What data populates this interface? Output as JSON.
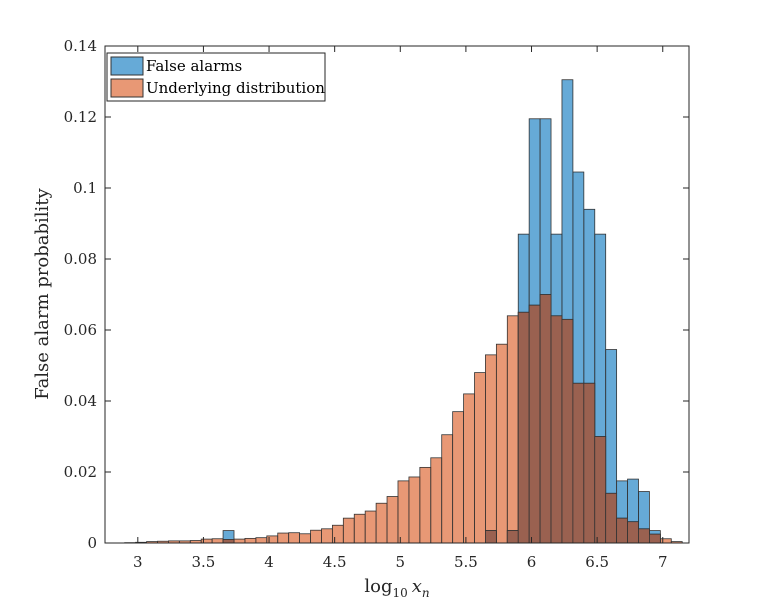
{
  "chart_data": {
    "type": "bar",
    "xlabel": "log",
    "xlabel_sub": "10",
    "xlabel_var": "x",
    "xlabel_var_sub": "n",
    "ylabel": "False alarm probability",
    "xlim": [
      2.75,
      7.2
    ],
    "ylim": [
      0,
      0.14
    ],
    "xticks": [
      3,
      3.5,
      4,
      4.5,
      5,
      5.5,
      6,
      6.5,
      7
    ],
    "xtick_labels": [
      "3",
      "3.5",
      "4",
      "4.5",
      "5",
      "5.5",
      "6",
      "6.5",
      "7"
    ],
    "yticks": [
      0,
      0.02,
      0.04,
      0.06,
      0.08,
      0.1,
      0.12,
      0.14
    ],
    "ytick_labels": [
      "0",
      "0.02",
      "0.04",
      "0.06",
      "0.08",
      "0.1",
      "0.12",
      "0.14"
    ],
    "bin_start": 2.9,
    "bin_width": 0.0833,
    "grid": false,
    "legend_position": "top-left",
    "colors": {
      "false_alarms": "#0072BD",
      "underlying": "#D95319",
      "overlap": "#9a6150",
      "edge": "#333333",
      "axis": "#262626"
    },
    "series": [
      {
        "name": "False alarms",
        "values": [
          0,
          0,
          0,
          0,
          0,
          0,
          0,
          0,
          0,
          0.0035,
          0,
          0,
          0,
          0,
          0,
          0,
          0,
          0,
          0,
          0,
          0,
          0,
          0,
          0,
          0,
          0,
          0,
          0,
          0,
          0,
          0,
          0,
          0,
          0.0035,
          0,
          0.0035,
          0.087,
          0.1195,
          0.1195,
          0.087,
          0.1305,
          0.1045,
          0.094,
          0.087,
          0.0545,
          0.0175,
          0.018,
          0.0145,
          0.0035,
          0,
          0
        ]
      },
      {
        "name": "Underlying distribution",
        "values": [
          0.0001,
          0.0002,
          0.0004,
          0.0005,
          0.0006,
          0.0006,
          0.0007,
          0.0011,
          0.0012,
          0.001,
          0.0011,
          0.0013,
          0.0015,
          0.002,
          0.0028,
          0.0029,
          0.0026,
          0.0036,
          0.004,
          0.005,
          0.007,
          0.0081,
          0.009,
          0.0112,
          0.0131,
          0.0175,
          0.0186,
          0.0213,
          0.024,
          0.0305,
          0.037,
          0.042,
          0.048,
          0.053,
          0.056,
          0.064,
          0.065,
          0.067,
          0.07,
          0.064,
          0.063,
          0.045,
          0.045,
          0.03,
          0.014,
          0.007,
          0.006,
          0.004,
          0.0025,
          0.0012,
          0.0004
        ]
      }
    ]
  }
}
